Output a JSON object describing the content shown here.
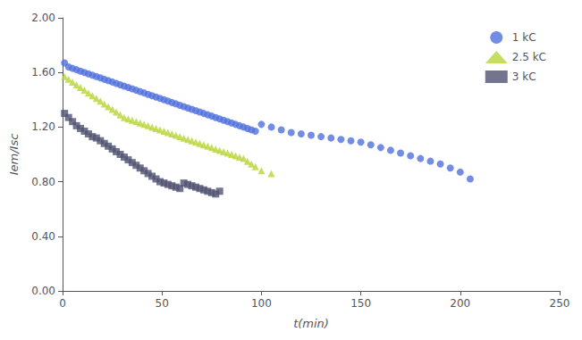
{
  "chart_data": {
    "type": "scatter",
    "xlabel": "t(min)",
    "ylabel": "Iem/Isc",
    "xlim": [
      0,
      250
    ],
    "ylim": [
      0.0,
      2.0
    ],
    "xticks": [
      0,
      50,
      100,
      150,
      200,
      250
    ],
    "yticks": [
      {
        "value": 0,
        "label": "0.00"
      },
      {
        "value": 0.4,
        "label": "0.40"
      },
      {
        "value": 0.8,
        "label": "0.80"
      },
      {
        "value": 1.2,
        "label": "1.20"
      },
      {
        "value": 1.6,
        "label": "1.60"
      },
      {
        "value": 2.0,
        "label": "2.00"
      }
    ],
    "grid": false,
    "legend": "upper right",
    "series": [
      {
        "name": "1 kC",
        "marker": "o",
        "x": [
          1,
          3,
          5,
          7,
          9,
          11,
          13,
          15,
          17,
          19,
          21,
          23,
          25,
          27,
          29,
          31,
          33,
          35,
          37,
          39,
          41,
          43,
          45,
          47,
          49,
          51,
          53,
          55,
          57,
          59,
          61,
          63,
          65,
          67,
          69,
          71,
          73,
          75,
          77,
          79,
          81,
          83,
          85,
          87,
          89,
          91,
          93,
          95,
          97,
          100,
          105,
          110,
          115,
          120,
          125,
          130,
          135,
          140,
          145,
          150,
          155,
          160,
          165,
          170,
          175,
          180,
          185,
          190,
          195,
          200,
          205
        ],
        "values": [
          1.67,
          1.64,
          1.63,
          1.62,
          1.61,
          1.6,
          1.59,
          1.58,
          1.57,
          1.56,
          1.55,
          1.54,
          1.53,
          1.52,
          1.51,
          1.5,
          1.49,
          1.48,
          1.47,
          1.46,
          1.45,
          1.44,
          1.43,
          1.42,
          1.41,
          1.4,
          1.39,
          1.38,
          1.37,
          1.36,
          1.35,
          1.34,
          1.33,
          1.32,
          1.31,
          1.3,
          1.29,
          1.28,
          1.27,
          1.26,
          1.25,
          1.24,
          1.23,
          1.22,
          1.21,
          1.2,
          1.19,
          1.18,
          1.17,
          1.22,
          1.2,
          1.18,
          1.16,
          1.15,
          1.14,
          1.13,
          1.12,
          1.11,
          1.1,
          1.09,
          1.07,
          1.05,
          1.03,
          1.01,
          0.99,
          0.97,
          0.95,
          0.93,
          0.9,
          0.87,
          0.82
        ]
      },
      {
        "name": "2.5 kC",
        "marker": "^",
        "x": [
          1,
          3,
          5,
          7,
          9,
          11,
          13,
          15,
          17,
          19,
          21,
          23,
          25,
          27,
          29,
          31,
          33,
          35,
          37,
          39,
          41,
          43,
          45,
          47,
          49,
          51,
          53,
          55,
          57,
          59,
          61,
          63,
          65,
          67,
          69,
          71,
          73,
          75,
          77,
          79,
          81,
          83,
          85,
          87,
          89,
          91,
          93,
          95,
          97,
          100,
          105
        ],
        "values": [
          1.57,
          1.55,
          1.53,
          1.51,
          1.49,
          1.47,
          1.45,
          1.43,
          1.41,
          1.39,
          1.37,
          1.35,
          1.33,
          1.31,
          1.29,
          1.27,
          1.26,
          1.25,
          1.24,
          1.23,
          1.22,
          1.21,
          1.2,
          1.19,
          1.18,
          1.17,
          1.16,
          1.15,
          1.14,
          1.13,
          1.12,
          1.11,
          1.1,
          1.09,
          1.08,
          1.07,
          1.06,
          1.05,
          1.04,
          1.03,
          1.02,
          1.01,
          1.0,
          0.99,
          0.98,
          0.97,
          0.95,
          0.93,
          0.91,
          0.88,
          0.86
        ]
      },
      {
        "name": "3 kC",
        "marker": "s",
        "x": [
          1,
          3,
          5,
          7,
          9,
          11,
          13,
          15,
          17,
          19,
          21,
          23,
          25,
          27,
          29,
          31,
          33,
          35,
          37,
          39,
          41,
          43,
          45,
          47,
          49,
          51,
          53,
          55,
          57,
          59,
          61,
          63,
          65,
          67,
          69,
          71,
          73,
          75,
          77,
          79
        ],
        "values": [
          1.3,
          1.27,
          1.24,
          1.21,
          1.19,
          1.17,
          1.15,
          1.13,
          1.12,
          1.1,
          1.08,
          1.06,
          1.04,
          1.02,
          1.0,
          0.98,
          0.96,
          0.94,
          0.92,
          0.9,
          0.88,
          0.86,
          0.84,
          0.82,
          0.8,
          0.79,
          0.78,
          0.77,
          0.76,
          0.75,
          0.79,
          0.78,
          0.77,
          0.76,
          0.75,
          0.74,
          0.73,
          0.72,
          0.71,
          0.73
        ]
      }
    ]
  }
}
